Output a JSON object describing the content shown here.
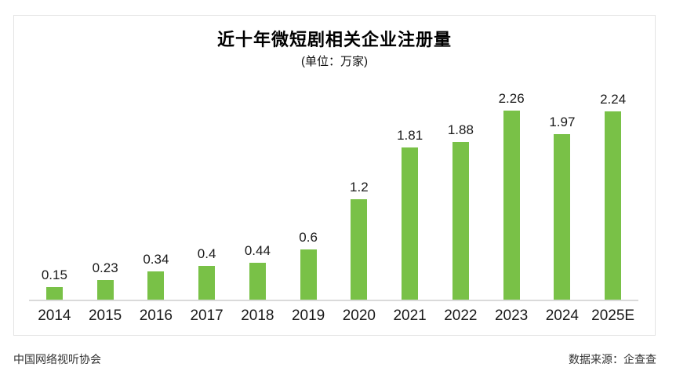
{
  "chart_data": {
    "type": "bar",
    "title": "近十年微短剧相关企业注册量",
    "subtitle": "(单位：万家)",
    "categories": [
      "2014",
      "2015",
      "2016",
      "2017",
      "2018",
      "2019",
      "2020",
      "2021",
      "2022",
      "2023",
      "2024",
      "2025E"
    ],
    "values": [
      0.15,
      0.23,
      0.34,
      0.4,
      0.44,
      0.6,
      1.2,
      1.81,
      1.88,
      2.26,
      1.97,
      2.24
    ],
    "value_labels": [
      "0.15",
      "0.23",
      "0.34",
      "0.4",
      "0.44",
      "0.6",
      "1.2",
      "1.81",
      "1.88",
      "2.26",
      "1.97",
      "2.24"
    ],
    "xlabel": "",
    "ylabel": "",
    "ylim": [
      0,
      2.5
    ],
    "grid": false,
    "legend": "none",
    "bar_color": "#79c147",
    "axis_line_color": "#dadada"
  },
  "footer": {
    "left": "中国网络视听协会",
    "right": "数据来源：企查查"
  }
}
